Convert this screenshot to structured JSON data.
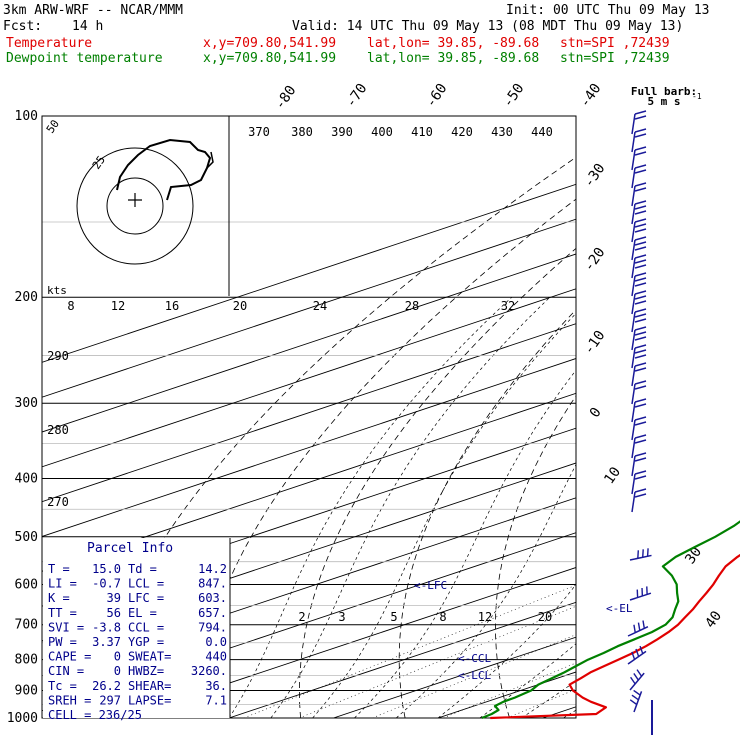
{
  "header": {
    "model": "3km ARW-WRF -- NCAR/MMM",
    "init": "Init: 00 UTC Thu 09 May 13",
    "fcst_label": "Fcst:",
    "fcst_value": "14 h",
    "valid": "Valid: 14 UTC Thu 09 May 13 (08 MDT Thu 09 May 13)",
    "temp_line": {
      "name": "Temperature",
      "xy": "x,y=709.80,541.99",
      "latlon": "lat,lon= 39.85, -89.68",
      "stn": "stn=SPI ,72439",
      "color": "#e00000"
    },
    "dew_line": {
      "name": "Dewpoint temperature",
      "xy": "x,y=709.80,541.99",
      "latlon": "lat,lon= 39.85, -89.68",
      "stn": "stn=SPI ,72439",
      "color": "#008000"
    }
  },
  "chart_data": {
    "type": "line",
    "subtype": "skew-t log-p",
    "yscale": "log",
    "ylim": [
      1000,
      100
    ],
    "pressure_ticks": [
      100,
      200,
      300,
      400,
      500,
      600,
      700,
      800,
      900,
      1000
    ],
    "isotherm_labels": [
      "-80",
      "-70",
      "-60",
      "-50",
      "-40",
      "-30",
      "-20",
      "-10",
      "0",
      "10",
      "30",
      "40"
    ],
    "theta_e_labels": [
      "370",
      "380",
      "390",
      "400",
      "410",
      "420",
      "430",
      "440"
    ],
    "theta_left_labels": [
      "290",
      "280",
      "270"
    ],
    "mixing_ratio_labels": [
      "2",
      "3",
      "5",
      "8",
      "12",
      "20"
    ],
    "speed_scale_labels": [
      "8",
      "12",
      "16",
      "20",
      "24",
      "28",
      "32"
    ],
    "speed_units": "kts",
    "hodograph_ring_labels": [
      "50",
      "25"
    ],
    "series": [
      {
        "name": "Temperature",
        "color": "#e00000",
        "points": [
          [
            1000,
            15.0
          ],
          [
            985,
            24
          ],
          [
            960,
            23
          ],
          [
            940,
            20
          ],
          [
            925,
            18
          ],
          [
            900,
            15
          ],
          [
            880,
            13
          ],
          [
            860,
            12.3
          ],
          [
            840,
            11.5
          ],
          [
            820,
            11
          ],
          [
            800,
            10.5
          ],
          [
            780,
            10
          ],
          [
            760,
            9.3
          ],
          [
            740,
            8.4
          ],
          [
            720,
            7.4
          ],
          [
            700,
            6.2
          ],
          [
            680,
            4.7
          ],
          [
            660,
            3.2
          ],
          [
            640,
            1.5
          ],
          [
            620,
            -0.2
          ],
          [
            600,
            -2
          ],
          [
            580,
            -4
          ],
          [
            560,
            -6
          ],
          [
            540,
            -7.6
          ],
          [
            520,
            -9
          ],
          [
            500,
            -11
          ],
          [
            480,
            -13.3
          ],
          [
            460,
            -15.6
          ],
          [
            440,
            -17.5
          ],
          [
            420,
            -19.5
          ],
          [
            400,
            -21.5
          ],
          [
            380,
            -24
          ],
          [
            360,
            -27
          ],
          [
            340,
            -30
          ],
          [
            320,
            -33
          ],
          [
            300,
            -36.5
          ],
          [
            280,
            -40
          ],
          [
            260,
            -44
          ],
          [
            240,
            -48
          ],
          [
            220,
            -52.3
          ],
          [
            210,
            -55
          ],
          [
            205,
            -56.6
          ],
          [
            200,
            -56.5
          ],
          [
            190,
            -56
          ],
          [
            180,
            -55.5
          ],
          [
            170,
            -55.2
          ],
          [
            160,
            -55
          ],
          [
            150,
            -54.2
          ],
          [
            140,
            -53.3
          ],
          [
            130,
            -54
          ],
          [
            120,
            -55.5
          ],
          [
            110,
            -57
          ],
          [
            100,
            -58.5
          ]
        ]
      },
      {
        "name": "Dewpoint temperature",
        "color": "#008000",
        "points": [
          [
            1000,
            14.2
          ],
          [
            985,
            14
          ],
          [
            970,
            13.5
          ],
          [
            955,
            12
          ],
          [
            940,
            11.6
          ],
          [
            925,
            11.5
          ],
          [
            900,
            11
          ],
          [
            880,
            10
          ],
          [
            860,
            9.5
          ],
          [
            840,
            9
          ],
          [
            820,
            8.3
          ],
          [
            800,
            7.6
          ],
          [
            780,
            7.2
          ],
          [
            760,
            6.6
          ],
          [
            740,
            6.2
          ],
          [
            720,
            5.8
          ],
          [
            700,
            5
          ],
          [
            680,
            3.5
          ],
          [
            660,
            1.5
          ],
          [
            640,
            -0.5
          ],
          [
            620,
            -3
          ],
          [
            600,
            -5.5
          ],
          [
            580,
            -8.5
          ],
          [
            560,
            -12
          ],
          [
            540,
            -13.5
          ],
          [
            520,
            -14.5
          ],
          [
            500,
            -15.5
          ],
          [
            480,
            -16.8
          ],
          [
            460,
            -18.5
          ],
          [
            440,
            -20.5
          ],
          [
            420,
            -22.5
          ],
          [
            400,
            -24.6
          ],
          [
            380,
            -27.3
          ],
          [
            360,
            -30
          ],
          [
            340,
            -33
          ],
          [
            320,
            -36.5
          ],
          [
            300,
            -40
          ],
          [
            280,
            -44
          ],
          [
            260,
            -48.5
          ],
          [
            240,
            -53
          ],
          [
            220,
            -58.5
          ],
          [
            210,
            -61.5
          ],
          [
            205,
            -63
          ],
          [
            200,
            -63.5
          ],
          [
            190,
            -63.5
          ],
          [
            180,
            -62.8
          ],
          [
            170,
            -62
          ],
          [
            160,
            -61.5
          ],
          [
            150,
            -61.2
          ],
          [
            140,
            -62.8
          ],
          [
            130,
            -64.5
          ],
          [
            120,
            -66
          ],
          [
            110,
            -67.3
          ],
          [
            100,
            -68.5
          ]
        ]
      }
    ]
  },
  "parcel_info": {
    "title": "Parcel Info",
    "rows": [
      [
        "T  =",
        "15.0",
        "Td =",
        "14.2"
      ],
      [
        "LI =",
        "-0.7",
        "LCL =",
        "847."
      ],
      [
        "K  =",
        "39",
        "LFC =",
        "603."
      ],
      [
        "TT =",
        "56",
        "EL =",
        "657."
      ],
      [
        "SVI =",
        "-3.8",
        "CCL =",
        "794."
      ],
      [
        "PW =",
        "3.37",
        "YGP =",
        "0.0"
      ],
      [
        "CAPE =",
        "0",
        "SWEAT=",
        "440"
      ],
      [
        "CIN =",
        "0",
        "HWBZ=",
        "3260."
      ],
      [
        "Tc =",
        "26.2",
        "SHEAR=",
        "36."
      ],
      [
        "SREH =",
        "297",
        "LAPSE=",
        "7.1"
      ]
    ],
    "cell": "CELL = 236/25"
  },
  "annotations": {
    "lfc": "<-LFC",
    "el": "<-EL",
    "ccl": "<-CCL",
    "lcl": "<-LCL",
    "barb_title": "Full barb:",
    "barb_units": "5 m s"
  },
  "colors": {
    "axes": "#000000",
    "wind_barbs": "#1a1a99",
    "panel_text": "#00008b",
    "temperature": "#e00000",
    "dewpoint": "#008000"
  }
}
